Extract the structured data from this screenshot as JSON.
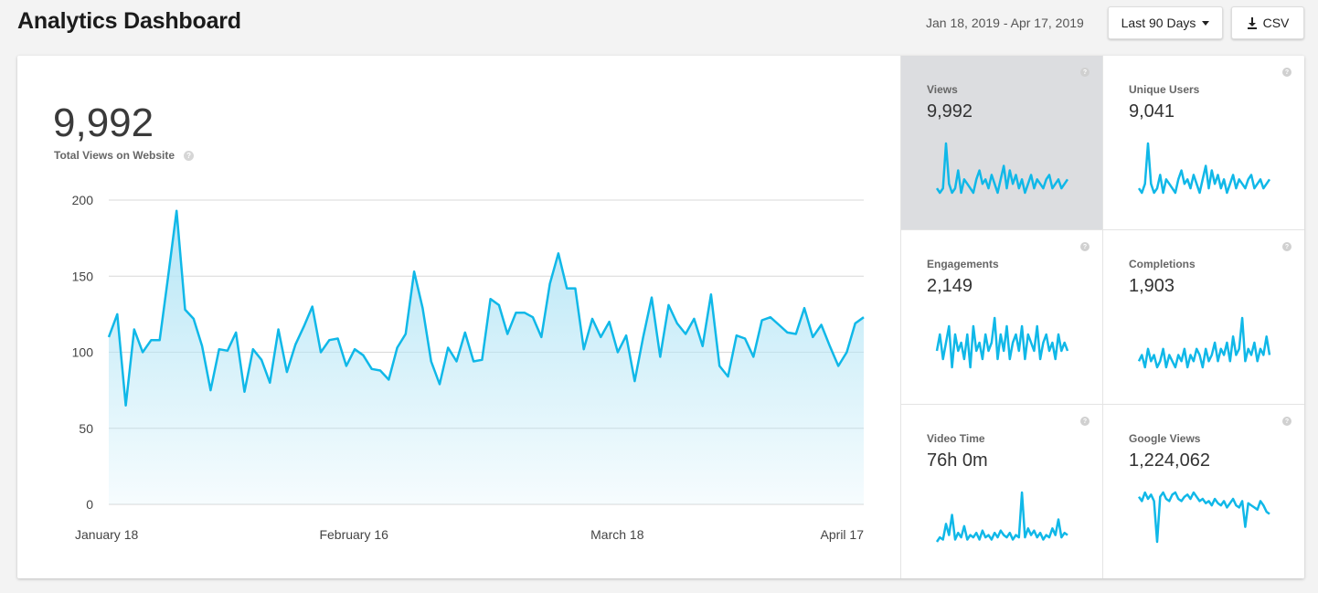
{
  "header": {
    "title": "Analytics Dashboard",
    "date_range": "Jan 18, 2019 - Apr 17, 2019",
    "range_button": "Last 90 Days",
    "csv_button": "CSV"
  },
  "summary": {
    "total": "9,992",
    "total_label": "Total Views on Website",
    "help": "?"
  },
  "colors": {
    "line": "#10b8e8",
    "area_top": "#b6e6f6",
    "grid": "#d8d8d8",
    "active_tile": "#dcdde0"
  },
  "chart_data": {
    "type": "area",
    "x_tick_labels": [
      "January 18",
      "February 16",
      "March 18",
      "April 17"
    ],
    "y_ticks": [
      0,
      50,
      100,
      150,
      200
    ],
    "ylim": [
      0,
      200
    ],
    "grid": true,
    "values": [
      110,
      125,
      65,
      115,
      100,
      108,
      108,
      150,
      193,
      128,
      122,
      104,
      75,
      102,
      101,
      113,
      74,
      102,
      95,
      80,
      115,
      87,
      105,
      117,
      130,
      100,
      108,
      109,
      91,
      102,
      98,
      89,
      88,
      82,
      103,
      112,
      153,
      129,
      94,
      79,
      103,
      94,
      113,
      94,
      95,
      135,
      131,
      112,
      126,
      126,
      123,
      110,
      145,
      165,
      142,
      142,
      102,
      122,
      110,
      120,
      100,
      111,
      81,
      110,
      136,
      97,
      131,
      119,
      112,
      122,
      104,
      138,
      91,
      84,
      111,
      109,
      97,
      121,
      123,
      118,
      113,
      112,
      129,
      110,
      118,
      104,
      91,
      100,
      119,
      123
    ]
  },
  "metrics": [
    {
      "label": "Views",
      "value": "9,992",
      "active": true,
      "values": [
        10,
        9,
        10,
        20,
        11,
        9,
        10,
        14,
        9,
        12,
        11,
        10,
        9,
        12,
        14,
        11,
        12,
        10,
        13,
        11,
        9,
        12,
        15,
        10,
        14,
        11,
        13,
        10,
        12,
        9,
        11,
        13,
        10,
        12,
        11,
        10,
        12,
        13,
        10,
        11,
        12,
        10,
        11,
        12
      ]
    },
    {
      "label": "Unique Users",
      "value": "9,041",
      "active": false,
      "values": [
        10,
        9,
        11,
        20,
        11,
        9,
        10,
        13,
        9,
        12,
        11,
        10,
        9,
        12,
        14,
        11,
        12,
        10,
        13,
        11,
        9,
        12,
        15,
        10,
        14,
        11,
        13,
        10,
        12,
        9,
        11,
        13,
        10,
        12,
        11,
        10,
        12,
        13,
        10,
        11,
        12,
        10,
        11,
        12
      ]
    },
    {
      "label": "Engagements",
      "value": "2,149",
      "active": false,
      "values": [
        11,
        13,
        10,
        12,
        14,
        9,
        13,
        11,
        12,
        10,
        13,
        9,
        14,
        11,
        12,
        10,
        13,
        11,
        12,
        15,
        10,
        13,
        11,
        14,
        10,
        12,
        13,
        11,
        14,
        10,
        13,
        12,
        11,
        14,
        10,
        12,
        13,
        11,
        12,
        10,
        13,
        11,
        12,
        11
      ]
    },
    {
      "label": "Completions",
      "value": "1,903",
      "active": false,
      "values": [
        10,
        11,
        9,
        12,
        10,
        11,
        9,
        10,
        12,
        9,
        11,
        10,
        9,
        11,
        10,
        12,
        9,
        11,
        10,
        12,
        11,
        9,
        12,
        10,
        11,
        13,
        10,
        12,
        11,
        13,
        10,
        14,
        11,
        12,
        17,
        10,
        12,
        11,
        13,
        10,
        12,
        11,
        14,
        11
      ]
    },
    {
      "label": "Video Time",
      "value": "76h 0m",
      "active": false,
      "values": [
        6,
        8,
        7,
        14,
        9,
        18,
        7,
        10,
        8,
        13,
        7,
        9,
        8,
        10,
        7,
        11,
        8,
        9,
        7,
        10,
        8,
        11,
        9,
        8,
        10,
        7,
        9,
        8,
        28,
        8,
        12,
        9,
        11,
        8,
        10,
        7,
        9,
        8,
        12,
        9,
        16,
        8,
        10,
        9
      ]
    },
    {
      "label": "Google Views",
      "value": "1,224,062",
      "active": false,
      "values": [
        26,
        24,
        28,
        25,
        27,
        24,
        5,
        26,
        28,
        25,
        24,
        27,
        28,
        25,
        24,
        26,
        27,
        25,
        28,
        26,
        24,
        25,
        23,
        24,
        22,
        25,
        23,
        22,
        24,
        21,
        23,
        25,
        22,
        21,
        24,
        12,
        23,
        22,
        21,
        20,
        24,
        22,
        19,
        18
      ]
    }
  ]
}
